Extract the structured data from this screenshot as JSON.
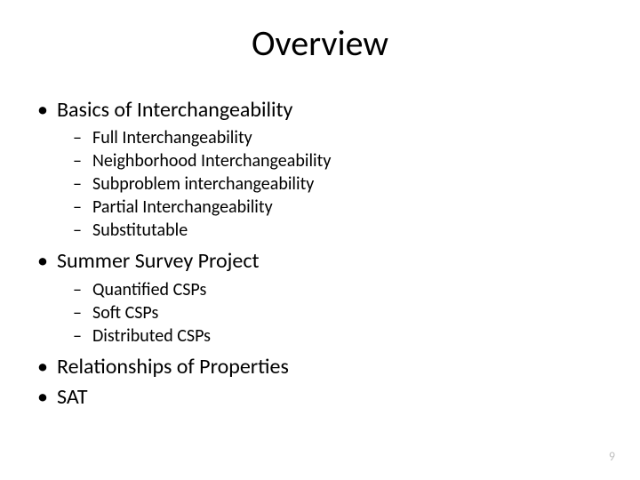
{
  "slide": {
    "title": "Overview",
    "page_number": "9",
    "background_color": "#ffffff",
    "title_fontsize": 40,
    "l1_fontsize": 24,
    "l2_fontsize": 20,
    "text_color": "#000000",
    "page_number_color": "#bfbfbf",
    "bullets": [
      {
        "text": "Basics of Interchangeability",
        "children": [
          "Full Interchangeability",
          "Neighborhood Interchangeability",
          "Subproblem interchangeability",
          "Partial Interchangeability",
          "Substitutable"
        ]
      },
      {
        "text": "Summer Survey Project",
        "children": [
          "Quantified CSPs",
          "Soft CSPs",
          "Distributed CSPs"
        ]
      },
      {
        "text": "Relationships of Properties",
        "children": []
      },
      {
        "text": "SAT",
        "children": []
      }
    ]
  }
}
